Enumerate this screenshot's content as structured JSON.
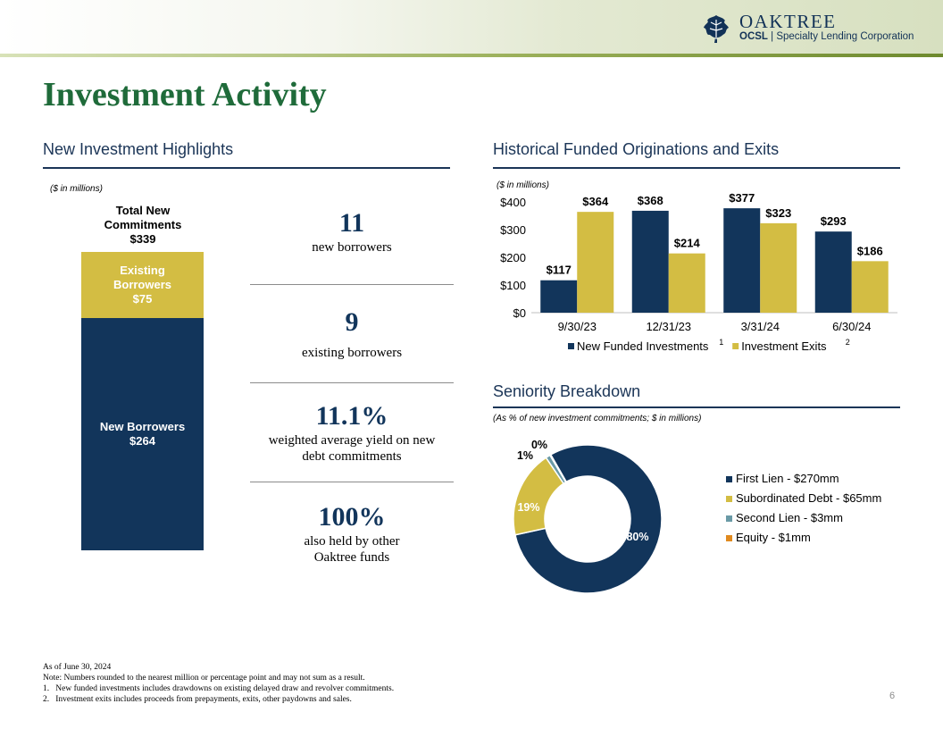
{
  "brand": {
    "name": "OAKTREE",
    "ticker": "OCSL",
    "subtitle": "Specialty Lending Corporation"
  },
  "page_title": "Investment Activity",
  "left_section": {
    "heading": "New Investment Highlights",
    "units_note": "($ in millions)",
    "stack": {
      "total_label": "Total New Commitments",
      "total_value": "$339",
      "total": 339,
      "segments": [
        {
          "name": "Existing Borrowers",
          "value_text": "$75",
          "value": 75,
          "color": "#d3bd43"
        },
        {
          "name": "New Borrowers",
          "value_text": "$264",
          "value": 264,
          "color": "#12355b"
        }
      ]
    },
    "stats": [
      {
        "value": "11",
        "label": "new borrowers"
      },
      {
        "value": "9",
        "label": "existing borrowers"
      },
      {
        "value": "11.1%",
        "label": "weighted average yield on new debt commitments"
      },
      {
        "value": "100%",
        "label": "also held by other Oaktree funds"
      }
    ]
  },
  "right_top": {
    "heading": "Historical Funded Originations and Exits",
    "units_note": "($ in millions)"
  },
  "right_bottom": {
    "heading": "Seniority Breakdown",
    "units_note": "(As % of new investment commitments; $ in millions)"
  },
  "chart_data": [
    {
      "type": "bar",
      "categories": [
        "9/30/23",
        "12/31/23",
        "3/31/24",
        "6/30/24"
      ],
      "series": [
        {
          "name": "New Funded Investments",
          "footnote": "1",
          "color": "#12355b",
          "values": [
            117,
            368,
            377,
            293
          ],
          "labels": [
            "$117",
            "$368",
            "$377",
            "$293"
          ]
        },
        {
          "name": "Investment Exits",
          "footnote": "2",
          "color": "#d3bd43",
          "values": [
            364,
            214,
            323,
            186
          ],
          "labels": [
            "$364",
            "$214",
            "$323",
            "$186"
          ]
        }
      ],
      "ylim": [
        0,
        400
      ],
      "yticks": [
        0,
        100,
        200,
        300,
        400
      ],
      "ytick_labels": [
        "$0",
        "$100",
        "$200",
        "$300",
        "$400"
      ],
      "legend": "bottom",
      "grid": false
    },
    {
      "type": "pie",
      "donut": true,
      "slices": [
        {
          "name": "First Lien - $270mm",
          "percent": 80,
          "label": "80%",
          "color": "#12355b"
        },
        {
          "name": "Subordinated Debt - $65mm",
          "percent": 19,
          "label": "19%",
          "color": "#d3bd43"
        },
        {
          "name": "Second Lien - $3mm",
          "percent": 1,
          "label": "1%",
          "color": "#6a9aa6"
        },
        {
          "name": "Equity - $1mm",
          "percent": 0,
          "label": "0%",
          "color": "#e08a1f"
        }
      ],
      "legend": "right"
    }
  ],
  "footer": {
    "lines": [
      "As of June 30, 2024",
      "Note: Numbers rounded to the nearest million or percentage point and may not sum as a result.",
      "1.   New funded investments includes drawdowns on existing delayed draw and revolver commitments.",
      "2.   Investment exits includes proceeds from prepayments, exits, other paydowns and sales."
    ],
    "page_number": "6"
  }
}
